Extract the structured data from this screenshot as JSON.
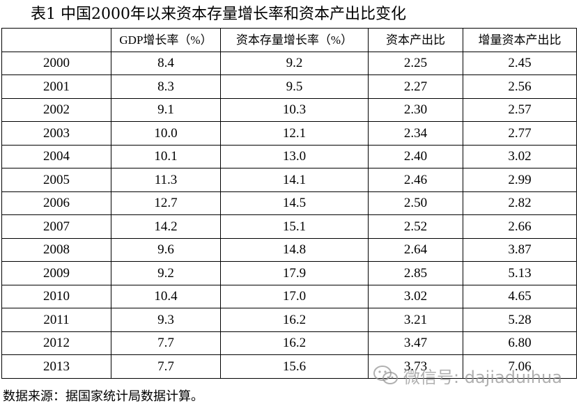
{
  "title": "表1 中国2000年以来资本存量增长率和资本产出比变化",
  "table": {
    "headers": [
      "",
      "GDP增长率（%）",
      "资本存量增长率（%）",
      "资本产出比",
      "增量资本产出比"
    ],
    "rows": [
      [
        "2000",
        "8.4",
        "9.2",
        "2.25",
        "2.45"
      ],
      [
        "2001",
        "8.3",
        "9.5",
        "2.27",
        "2.56"
      ],
      [
        "2002",
        "9.1",
        "10.3",
        "2.30",
        "2.57"
      ],
      [
        "2003",
        "10.0",
        "12.1",
        "2.34",
        "2.77"
      ],
      [
        "2004",
        "10.1",
        "13.0",
        "2.40",
        "3.02"
      ],
      [
        "2005",
        "11.3",
        "14.1",
        "2.46",
        "2.99"
      ],
      [
        "2006",
        "12.7",
        "14.5",
        "2.50",
        "2.82"
      ],
      [
        "2007",
        "14.2",
        "15.1",
        "2.52",
        "2.66"
      ],
      [
        "2008",
        "9.6",
        "14.8",
        "2.64",
        "3.87"
      ],
      [
        "2009",
        "9.2",
        "17.9",
        "2.85",
        "5.13"
      ],
      [
        "2010",
        "10.4",
        "17.0",
        "3.02",
        "4.65"
      ],
      [
        "2011",
        "9.3",
        "16.2",
        "3.21",
        "5.28"
      ],
      [
        "2012",
        "7.7",
        "16.2",
        "3.47",
        "6.80"
      ],
      [
        "2013",
        "7.7",
        "15.6",
        "3.73",
        "7.06"
      ]
    ]
  },
  "source": "数据来源：据国家统计局数据计算。",
  "watermark": {
    "text": "微信号: dajiaduihua",
    "icon": "wechat-icon"
  }
}
